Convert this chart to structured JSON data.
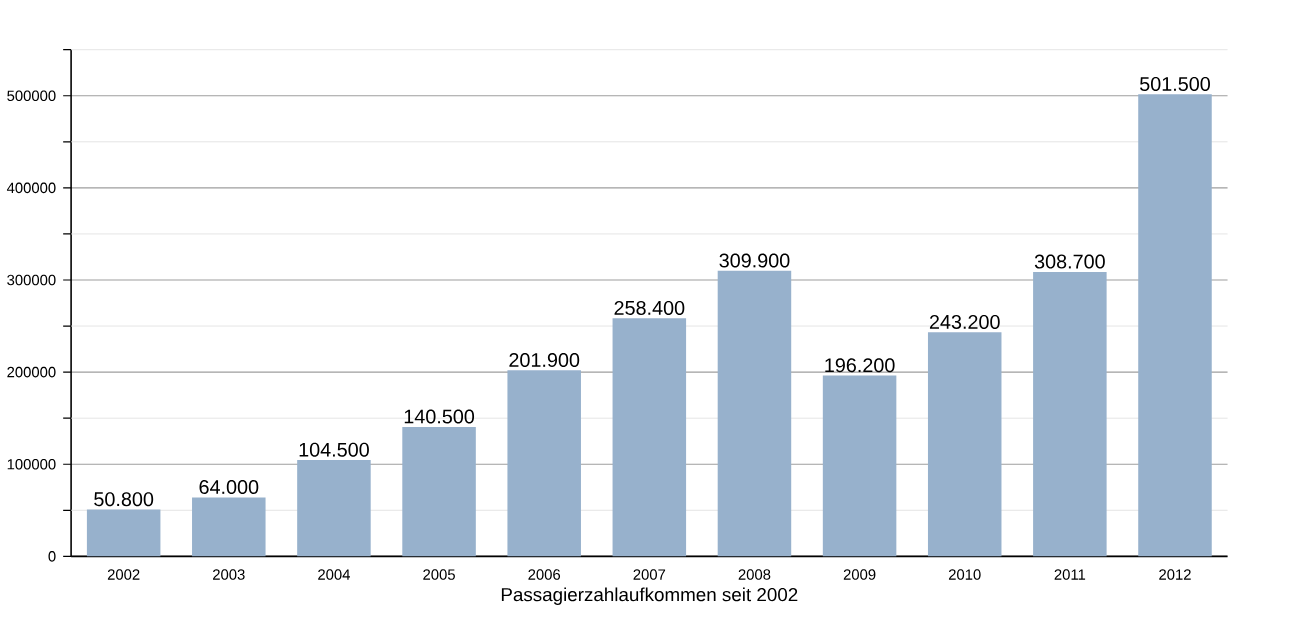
{
  "chart_data": {
    "type": "bar",
    "xlabel": "Passagierzahlaufkommen seit 2002",
    "categories": [
      "2002",
      "2003",
      "2004",
      "2005",
      "2006",
      "2007",
      "2008",
      "2009",
      "2010",
      "2011",
      "2012"
    ],
    "values": [
      50800,
      64000,
      104500,
      140500,
      201900,
      258400,
      309900,
      196200,
      243200,
      308700,
      501500
    ],
    "value_labels": [
      "50.800",
      "64.000",
      "104.500",
      "140.500",
      "201.900",
      "258.400",
      "309.900",
      "196.200",
      "243.200",
      "308.700",
      "501.500"
    ],
    "color": "#97b1cc",
    "ylim": [
      0,
      550000
    ],
    "yticks": [
      0,
      {
        "value": 50000,
        "label": null
      },
      100000,
      {
        "value": 150000,
        "label": null
      },
      200000,
      {
        "value": 250000,
        "label": null
      },
      300000,
      {
        "value": 350000,
        "label": null
      },
      400000,
      {
        "value": 450000,
        "label": null
      },
      500000,
      {
        "value": 550000,
        "label": null
      }
    ],
    "grid": "y"
  }
}
